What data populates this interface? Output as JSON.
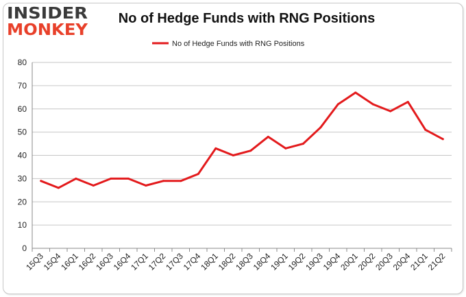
{
  "logo": {
    "line1": "INSIDER",
    "line2": "MONKEY"
  },
  "colors": {
    "series": "#e31a1c",
    "logo_dark": "#3a3a3a",
    "logo_red": "#e8402a",
    "grid": "#c6c6c6"
  },
  "chart_data": {
    "type": "line",
    "title": "No of Hedge Funds with RNG Positions",
    "xlabel": "",
    "ylabel": "",
    "ylim": [
      0,
      80
    ],
    "yticks": [
      0,
      10,
      20,
      30,
      40,
      50,
      60,
      70,
      80
    ],
    "grid": true,
    "legend_position": "top-center",
    "categories": [
      "15Q3",
      "15Q4",
      "16Q1",
      "16Q2",
      "16Q3",
      "16Q4",
      "17Q1",
      "17Q2",
      "17Q3",
      "17Q4",
      "18Q1",
      "18Q2",
      "18Q3",
      "18Q4",
      "19Q1",
      "19Q2",
      "19Q3",
      "19Q4",
      "20Q1",
      "20Q2",
      "20Q3",
      "20Q4",
      "21Q1",
      "21Q2"
    ],
    "series": [
      {
        "name": "No of Hedge Funds with RNG Positions",
        "values": [
          29,
          26,
          30,
          27,
          30,
          30,
          27,
          29,
          29,
          32,
          43,
          40,
          42,
          48,
          43,
          45,
          52,
          62,
          67,
          62,
          59,
          63,
          51,
          47
        ]
      }
    ]
  }
}
